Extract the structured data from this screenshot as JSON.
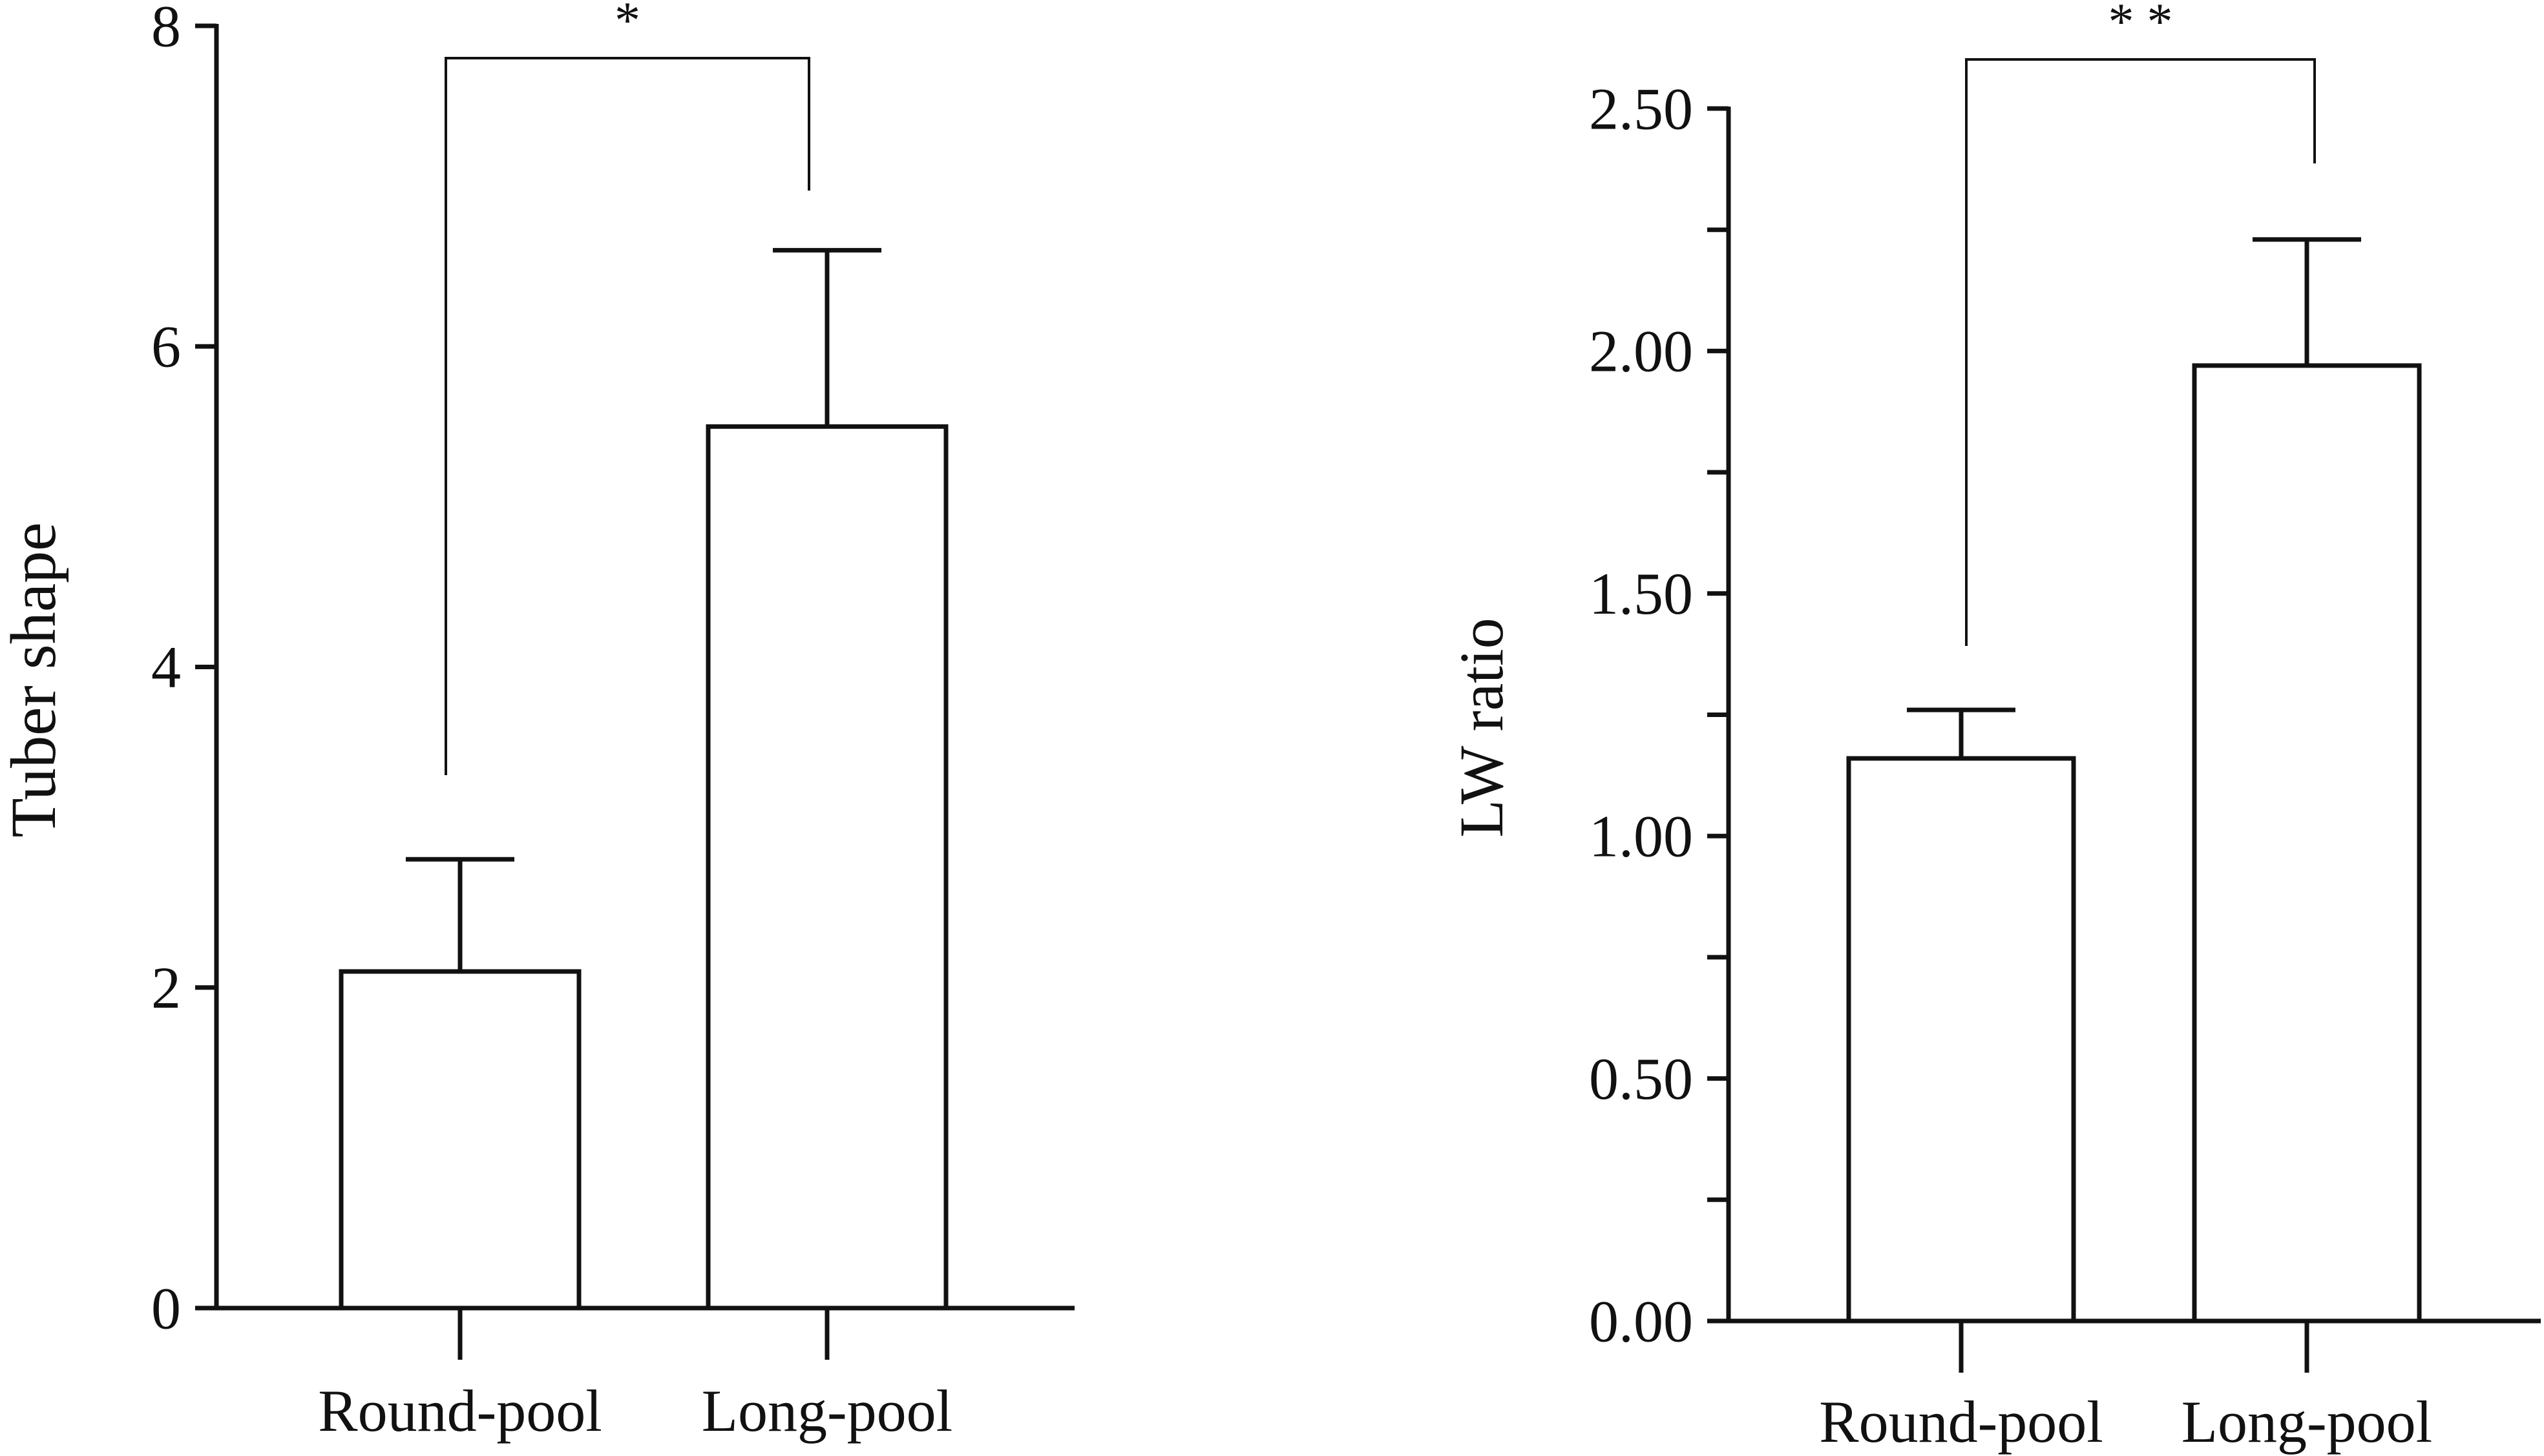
{
  "chart_data": [
    {
      "type": "bar",
      "categories": [
        "Round-pool",
        "Long-pool"
      ],
      "values": [
        2.1,
        5.5
      ],
      "errors": [
        0.7,
        1.1
      ],
      "ylabel": "Tuber shape",
      "xlabel": "",
      "ylim": [
        0,
        8
      ],
      "yticks": [
        "0",
        "2",
        "4",
        "6",
        "8"
      ],
      "minor_ticks": false,
      "significance": "*",
      "grid": false,
      "colors": {
        "bar_fill": "#ffffff",
        "stroke": "#111111"
      }
    },
    {
      "type": "bar",
      "categories": [
        "Round-pool",
        "Long-pool"
      ],
      "values": [
        1.16,
        1.97
      ],
      "errors": [
        0.1,
        0.26
      ],
      "ylabel": "LW ratio",
      "xlabel": "",
      "ylim": [
        0,
        2.5
      ],
      "yticks": [
        "0.00",
        "0.50",
        "1.00",
        "1.50",
        "2.00",
        "2.50"
      ],
      "minor_ticks": true,
      "significance": "* *",
      "grid": false,
      "colors": {
        "bar_fill": "#ffffff",
        "stroke": "#111111"
      }
    }
  ]
}
